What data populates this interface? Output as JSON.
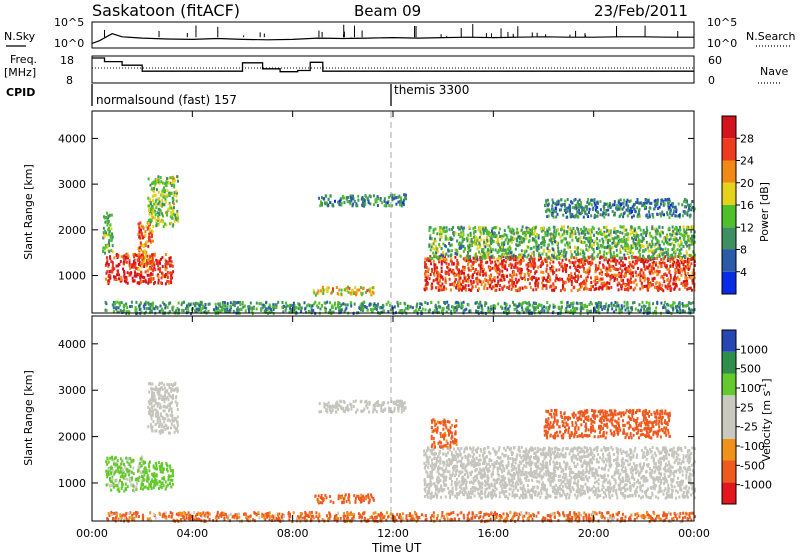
{
  "header": {
    "title": "Saskatoon (fitACF)",
    "beam": "Beam 09",
    "date": "23/Feb/2011"
  },
  "side_labels": {
    "nsky": "N.Sky",
    "freq": "Freq.",
    "freq_unit": "[MHz]",
    "cpid": "CPID",
    "nsearch": "N.Search",
    "nave": "Nave"
  },
  "nsky_ticks": [
    "10^5",
    "10^0"
  ],
  "freq_ticks": [
    "18",
    "8"
  ],
  "nave_ticks": [
    "60",
    "0"
  ],
  "cpid_modes": [
    {
      "label": "normalsound (fast) 157",
      "start_hour": 0
    },
    {
      "label": "themis 3300",
      "start_hour": 12
    }
  ],
  "colors": {
    "power_scale": [
      "#0a2be6",
      "#2a5aa8",
      "#3f8f63",
      "#4fbf2c",
      "#e6d21a",
      "#f08a14",
      "#ee3b1e",
      "#d4141c"
    ],
    "velocity_scale": [
      "#e2161c",
      "#ee5a1e",
      "#f0921a",
      "#c9c9c0",
      "#c9c9c0",
      "#63c92c",
      "#2f8f4a",
      "#2647b2"
    ],
    "ground_scatter": "#c5c5bd"
  },
  "chart_data": [
    {
      "type": "line",
      "name": "nsky-nsearch",
      "xlim": [
        0,
        24
      ],
      "x": [
        0,
        0.3,
        0.8,
        1.2,
        2.0,
        3.0,
        4.0,
        5.0,
        6.0,
        7.0,
        8.0,
        9.0,
        10.0,
        11.0,
        12.0,
        13.0,
        14.0,
        15.0,
        16.0,
        17.0,
        18.0,
        19.0,
        20.0,
        21.0,
        22.0,
        23.0,
        24.0
      ],
      "y_log": [
        0.6,
        1.2,
        2.8,
        2.1,
        1.8,
        1.6,
        1.5,
        1.7,
        1.5,
        1.4,
        1.5,
        1.8,
        1.7,
        1.8,
        1.9,
        1.8,
        1.9,
        2.0,
        1.9,
        2.0,
        2.1,
        2.0,
        2.0,
        2.1,
        2.1,
        2.0,
        2.0
      ]
    },
    {
      "type": "line",
      "name": "frequency",
      "ylabel": "Freq. [MHz]",
      "ylim": [
        8,
        18
      ],
      "xlim": [
        0,
        24
      ],
      "x": [
        0,
        0.5,
        0.5,
        1.2,
        1.2,
        2.0,
        2.0,
        6.0,
        6.0,
        6.8,
        6.8,
        7.5,
        7.5,
        8.2,
        8.2,
        8.7,
        8.7,
        9.2,
        9.2,
        24.0
      ],
      "values": [
        18,
        18,
        16.5,
        16.5,
        15,
        15,
        12.5,
        12.5,
        16,
        16,
        13.5,
        13.5,
        12.3,
        12.3,
        12.8,
        12.8,
        16.2,
        16.2,
        12.5,
        12.5
      ]
    },
    {
      "type": "heatmap",
      "name": "power",
      "ylabel": "Slant Range [km]",
      "ylim": [
        180,
        4600
      ],
      "yticks": [
        1000,
        2000,
        3000,
        4000
      ],
      "xlim": [
        0,
        24
      ],
      "xticks": [
        "00:00",
        "04:00",
        "08:00",
        "12:00",
        "16:00",
        "20:00",
        "00:00"
      ],
      "colorbar": {
        "label": "Power [dB]",
        "ticks": [
          "28",
          "24",
          "20",
          "16",
          "12",
          "8",
          "4"
        ],
        "range": [
          0,
          30
        ]
      },
      "regions": [
        {
          "t0": 0.5,
          "t1": 3.2,
          "r0": 850,
          "r1": 1500,
          "level": 26
        },
        {
          "t0": 0.4,
          "t1": 0.8,
          "r0": 1500,
          "r1": 2400,
          "level": 12
        },
        {
          "t0": 1.8,
          "t1": 2.4,
          "r0": 1100,
          "r1": 2200,
          "level": 22
        },
        {
          "t0": 2.2,
          "t1": 3.4,
          "r0": 2100,
          "r1": 3200,
          "level": 14
        },
        {
          "t0": 8.8,
          "t1": 11.2,
          "r0": 600,
          "r1": 780,
          "level": 18
        },
        {
          "t0": 9.0,
          "t1": 12.5,
          "r0": 2550,
          "r1": 2800,
          "level": 8
        },
        {
          "t0": 13.2,
          "t1": 24.0,
          "r0": 700,
          "r1": 1450,
          "level": 25
        },
        {
          "t0": 13.4,
          "t1": 24.0,
          "r0": 1400,
          "r1": 2100,
          "level": 12
        },
        {
          "t0": 18.0,
          "t1": 24.0,
          "r0": 2300,
          "r1": 2700,
          "level": 8
        },
        {
          "t0": 0.5,
          "t1": 24.0,
          "r0": 200,
          "r1": 450,
          "level": 10
        }
      ]
    },
    {
      "type": "heatmap",
      "name": "velocity",
      "ylabel": "Slant Range [km]",
      "ylim": [
        180,
        4600
      ],
      "yticks": [
        1000,
        2000,
        3000,
        4000
      ],
      "xlim": [
        0,
        24
      ],
      "xticks": [
        "00:00",
        "04:00",
        "08:00",
        "12:00",
        "16:00",
        "20:00",
        "00:00"
      ],
      "xlabel": "Time UT",
      "colorbar": {
        "label": "Velocity [m s^-1]",
        "ticks": [
          "1000",
          "500",
          "100",
          "25",
          "-25",
          "-100",
          "-500",
          "-1000"
        ]
      },
      "regions": [
        {
          "t0": 0.5,
          "t1": 2.0,
          "r0": 850,
          "r1": 1600,
          "level": 150
        },
        {
          "t0": 2.0,
          "t1": 3.2,
          "r0": 900,
          "r1": 1500,
          "level": 300
        },
        {
          "t0": 2.2,
          "t1": 3.4,
          "r0": 2100,
          "r1": 3200,
          "level": 0
        },
        {
          "t0": 8.8,
          "t1": 11.2,
          "r0": 600,
          "r1": 780,
          "level": -200
        },
        {
          "t0": 9.0,
          "t1": 12.5,
          "r0": 2550,
          "r1": 2800,
          "level": 0
        },
        {
          "t0": 13.2,
          "t1": 24.0,
          "r0": 700,
          "r1": 1800,
          "level": 0
        },
        {
          "t0": 13.5,
          "t1": 14.5,
          "r0": 1800,
          "r1": 2400,
          "level": -200
        },
        {
          "t0": 18.0,
          "t1": 23.0,
          "r0": 2000,
          "r1": 2600,
          "level": -300
        },
        {
          "t0": 0.5,
          "t1": 24.0,
          "r0": 200,
          "r1": 400,
          "level": -150
        }
      ]
    }
  ]
}
